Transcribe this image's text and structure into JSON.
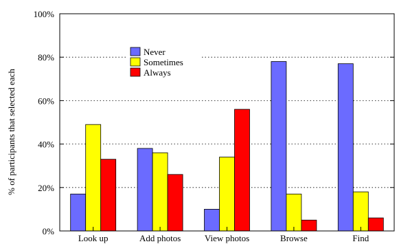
{
  "chart_data": {
    "type": "bar",
    "title": "",
    "xlabel": "",
    "ylabel": "% of participants that selected each",
    "categories": [
      "Look up",
      "Add photos",
      "View photos",
      "Browse",
      "Find"
    ],
    "series": [
      {
        "name": "Never",
        "color": "#6b6bff",
        "values": [
          17,
          38,
          10,
          78,
          77
        ]
      },
      {
        "name": "Sometimes",
        "color": "#ffff00",
        "values": [
          49,
          36,
          34,
          17,
          18
        ]
      },
      {
        "name": "Always",
        "color": "#ff0000",
        "values": [
          33,
          26,
          56,
          5,
          6
        ]
      }
    ],
    "ylim": [
      0,
      100
    ],
    "yticks": [
      {
        "value": 0,
        "label": "0%"
      },
      {
        "value": 20,
        "label": "20%"
      },
      {
        "value": 40,
        "label": "40%"
      },
      {
        "value": 60,
        "label": "60%"
      },
      {
        "value": 80,
        "label": "80%"
      },
      {
        "value": 100,
        "label": "100%"
      }
    ],
    "grid": "horizontal-dotted",
    "legend_position": "top-left-inside"
  }
}
